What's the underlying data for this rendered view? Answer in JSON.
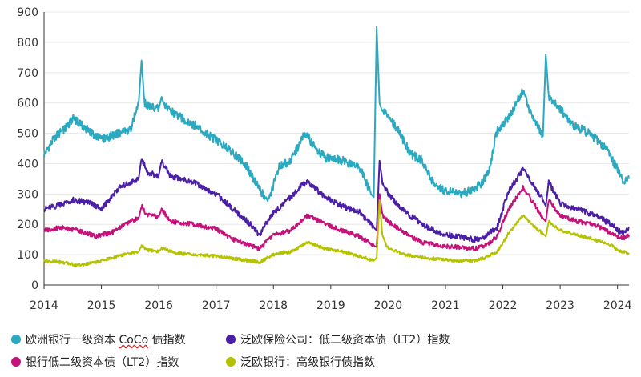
{
  "chart_data": {
    "type": "line",
    "title": "",
    "xlabel": "",
    "ylabel": "",
    "ylim": [
      0,
      900
    ],
    "xlim": [
      2014,
      2024.2
    ],
    "yticks": [
      0,
      100,
      200,
      300,
      400,
      500,
      600,
      700,
      800,
      900
    ],
    "xticks": [
      2014,
      2015,
      2016,
      2017,
      2018,
      2019,
      2020,
      2021,
      2022,
      2023,
      2024
    ],
    "grid": "horizontal",
    "legend_position": "bottom",
    "series": [
      {
        "name": "欧洲银行一级资本 CoCo 债指数",
        "label_prefix": "欧洲银行一级资本 ",
        "label_coco": "CoCo",
        "label_suffix": " 债指数",
        "color": "#2aa9c0",
        "x": [
          2014.0,
          2014.2,
          2014.4,
          2014.5,
          2014.7,
          2014.9,
          2015.0,
          2015.3,
          2015.5,
          2015.65,
          2015.7,
          2015.75,
          2015.85,
          2016.0,
          2016.05,
          2016.1,
          2016.3,
          2016.6,
          2016.9,
          2017.2,
          2017.5,
          2017.75,
          2017.9,
          2018.1,
          2018.3,
          2018.55,
          2018.7,
          2018.9,
          2019.2,
          2019.5,
          2019.7,
          2019.75,
          2019.8,
          2019.85,
          2019.9,
          2020.0,
          2020.2,
          2020.4,
          2020.6,
          2020.8,
          2021.0,
          2021.3,
          2021.6,
          2021.75,
          2021.9,
          2022.1,
          2022.35,
          2022.5,
          2022.7,
          2022.75,
          2022.8,
          2023.0,
          2023.2,
          2023.5,
          2023.8,
          2024.0,
          2024.1,
          2024.2
        ],
        "values": [
          430,
          490,
          520,
          550,
          520,
          490,
          480,
          500,
          510,
          600,
          740,
          600,
          590,
          580,
          620,
          590,
          560,
          530,
          490,
          450,
          400,
          320,
          270,
          390,
          410,
          500,
          460,
          420,
          410,
          390,
          300,
          290,
          850,
          600,
          570,
          560,
          500,
          430,
          410,
          330,
          310,
          300,
          330,
          370,
          510,
          550,
          640,
          560,
          490,
          760,
          620,
          580,
          530,
          500,
          450,
          380,
          340,
          350
        ]
      },
      {
        "name": "泛欧保险公司：低二级资本债（LT2）指数",
        "color": "#4b1fa5",
        "x": [
          2014.0,
          2014.2,
          2014.5,
          2014.8,
          2015.0,
          2015.3,
          2015.65,
          2015.7,
          2015.8,
          2016.0,
          2016.05,
          2016.2,
          2016.6,
          2017.0,
          2017.3,
          2017.6,
          2017.75,
          2018.0,
          2018.2,
          2018.5,
          2018.6,
          2018.9,
          2019.2,
          2019.5,
          2019.75,
          2019.8,
          2019.85,
          2019.9,
          2020.0,
          2020.3,
          2020.6,
          2020.9,
          2021.2,
          2021.5,
          2021.7,
          2021.9,
          2022.1,
          2022.35,
          2022.5,
          2022.7,
          2022.75,
          2022.8,
          2023.0,
          2023.3,
          2023.6,
          2023.9,
          2024.0,
          2024.1,
          2024.2
        ],
        "values": [
          250,
          260,
          280,
          270,
          250,
          320,
          350,
          420,
          370,
          360,
          410,
          360,
          340,
          300,
          250,
          200,
          165,
          240,
          270,
          330,
          340,
          290,
          260,
          240,
          190,
          180,
          410,
          340,
          300,
          240,
          200,
          170,
          160,
          150,
          160,
          190,
          310,
          380,
          340,
          280,
          260,
          340,
          270,
          250,
          230,
          200,
          180,
          170,
          185
        ]
      },
      {
        "name": "银行低二级资本债（LT2）指数",
        "color": "#c4127a",
        "x": [
          2014.0,
          2014.3,
          2014.6,
          2014.9,
          2015.2,
          2015.5,
          2015.65,
          2015.7,
          2015.8,
          2016.0,
          2016.05,
          2016.2,
          2016.6,
          2017.0,
          2017.3,
          2017.75,
          2018.0,
          2018.3,
          2018.6,
          2018.9,
          2019.2,
          2019.5,
          2019.75,
          2019.8,
          2019.85,
          2019.9,
          2020.0,
          2020.3,
          2020.6,
          2020.9,
          2021.2,
          2021.5,
          2021.7,
          2021.9,
          2022.1,
          2022.35,
          2022.5,
          2022.7,
          2022.75,
          2022.8,
          2023.0,
          2023.3,
          2023.6,
          2023.9,
          2024.0,
          2024.1,
          2024.2
        ],
        "values": [
          180,
          190,
          180,
          160,
          175,
          210,
          220,
          260,
          230,
          225,
          250,
          210,
          200,
          185,
          150,
          120,
          165,
          180,
          230,
          200,
          180,
          160,
          130,
          125,
          300,
          230,
          210,
          170,
          140,
          130,
          125,
          120,
          130,
          160,
          250,
          320,
          280,
          220,
          210,
          280,
          230,
          210,
          200,
          170,
          160,
          155,
          165
        ]
      },
      {
        "name": "泛欧银行：高级银行债指数",
        "color": "#b5c200",
        "x": [
          2014.0,
          2014.3,
          2014.6,
          2014.9,
          2015.2,
          2015.5,
          2015.65,
          2015.7,
          2015.8,
          2016.0,
          2016.05,
          2016.3,
          2016.7,
          2017.0,
          2017.4,
          2017.75,
          2018.0,
          2018.3,
          2018.6,
          2018.9,
          2019.2,
          2019.5,
          2019.75,
          2019.8,
          2019.85,
          2019.9,
          2020.0,
          2020.3,
          2020.6,
          2020.9,
          2021.2,
          2021.5,
          2021.7,
          2021.9,
          2022.1,
          2022.35,
          2022.5,
          2022.7,
          2022.75,
          2022.8,
          2023.0,
          2023.3,
          2023.6,
          2023.9,
          2024.0,
          2024.1,
          2024.2
        ],
        "values": [
          80,
          75,
          65,
          75,
          90,
          105,
          110,
          130,
          115,
          110,
          120,
          105,
          100,
          95,
          85,
          75,
          100,
          110,
          140,
          120,
          110,
          95,
          80,
          90,
          280,
          160,
          120,
          100,
          90,
          85,
          80,
          80,
          90,
          110,
          170,
          230,
          200,
          170,
          160,
          210,
          180,
          165,
          150,
          130,
          115,
          110,
          105
        ]
      }
    ]
  }
}
